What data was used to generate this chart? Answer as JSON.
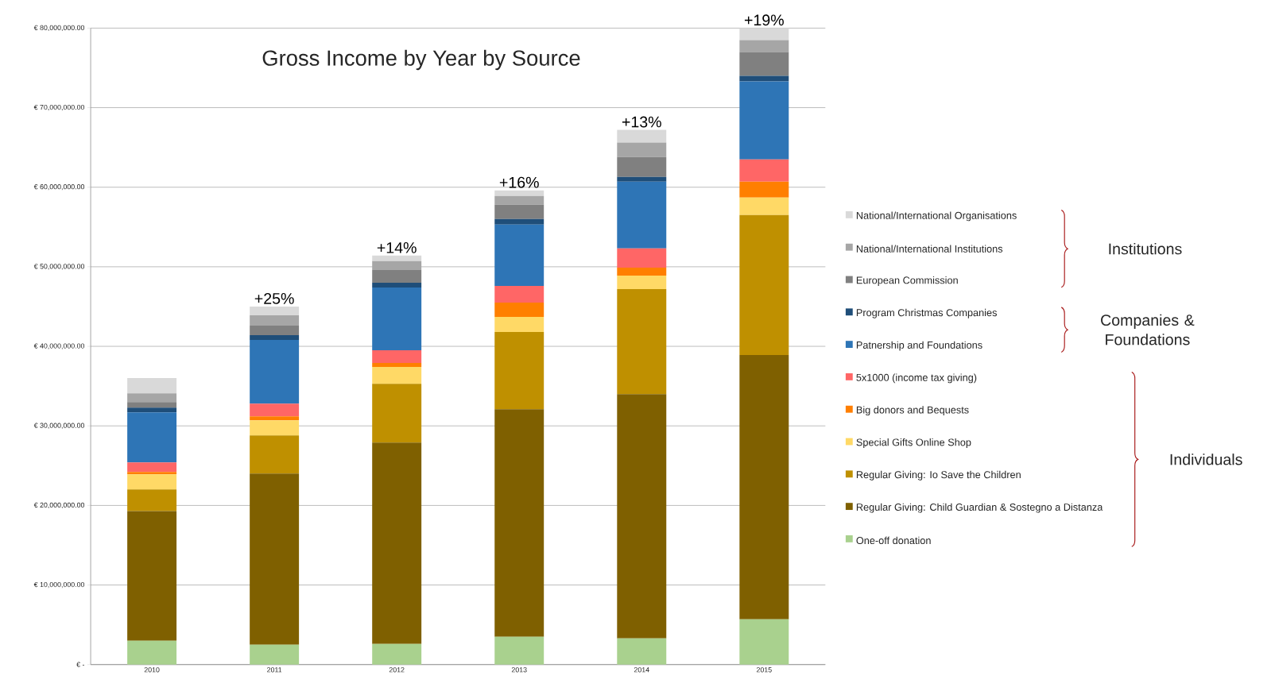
{
  "chart_data": {
    "type": "bar",
    "title": "Gross Income by Year by Source",
    "stacked": true,
    "grid": "y",
    "legend": "right",
    "categories": [
      "2010",
      "2011",
      "2012",
      "2013",
      "2014",
      "2015"
    ],
    "ylim": [
      0,
      80000000
    ],
    "yticks": [
      {
        "value": 0,
        "label": "€ -"
      },
      {
        "value": 10000000,
        "label": "€ 10,000,000.00"
      },
      {
        "value": 20000000,
        "label": "€ 20,000,000.00"
      },
      {
        "value": 30000000,
        "label": "€ 30,000,000.00"
      },
      {
        "value": 40000000,
        "label": "€ 40,000,000.00"
      },
      {
        "value": 50000000,
        "label": "€ 50,000,000.00"
      },
      {
        "value": 60000000,
        "label": "€ 60,000,000.00"
      },
      {
        "value": 70000000,
        "label": "€ 70,000,000.00"
      },
      {
        "value": 80000000,
        "label": "€ 80,000,000.00"
      }
    ],
    "series": [
      {
        "name": "One-off donation",
        "color": "#a9d18e",
        "values": [
          3000000,
          2500000,
          2600000,
          3500000,
          3300000,
          5700000
        ]
      },
      {
        "name": "Regular Giving: Child Guardian & Sostegno a Distanza",
        "color": "#7f6000",
        "values": [
          16300000,
          21500000,
          25300000,
          28600000,
          30700000,
          33200000
        ]
      },
      {
        "name": "Regular Giving: Io Save the Children",
        "color": "#bf9000",
        "values": [
          2700000,
          4800000,
          7400000,
          9700000,
          13200000,
          17600000
        ]
      },
      {
        "name": "Special Gifts Online Shop",
        "color": "#ffd966",
        "values": [
          1900000,
          1900000,
          2100000,
          1900000,
          1700000,
          2200000
        ]
      },
      {
        "name": "Big donors and Bequests",
        "color": "#ff7f00",
        "values": [
          300000,
          500000,
          500000,
          1800000,
          1000000,
          2000000
        ]
      },
      {
        "name": "5x1000 (income tax giving)",
        "color": "#ff6666",
        "values": [
          1200000,
          1600000,
          1600000,
          2100000,
          2400000,
          2800000
        ]
      },
      {
        "name": "Patnership and Foundations",
        "color": "#2e75b6",
        "values": [
          6300000,
          8000000,
          7900000,
          7700000,
          8400000,
          9800000
        ]
      },
      {
        "name": "Program Christmas Companies",
        "color": "#1f4e79",
        "values": [
          600000,
          600000,
          600000,
          700000,
          600000,
          700000
        ]
      },
      {
        "name": "European Commission",
        "color": "#808080",
        "values": [
          700000,
          1200000,
          1600000,
          1800000,
          2500000,
          3000000
        ]
      },
      {
        "name": "National/International Institutions",
        "color": "#a6a6a6",
        "values": [
          1100000,
          1300000,
          1100000,
          1100000,
          1800000,
          1500000
        ]
      },
      {
        "name": "National/International Organisations",
        "color": "#d9d9d9",
        "values": [
          1900000,
          1100000,
          700000,
          700000,
          1600000,
          1500000
        ]
      }
    ],
    "annotations": [
      {
        "text": "+25%",
        "x": "2011",
        "y": 45000000
      },
      {
        "text": "+14%",
        "x": "2012",
        "y": 51400000
      },
      {
        "text": "+16%",
        "x": "2013",
        "y": 59600000
      },
      {
        "text": "+13%",
        "x": "2014",
        "y": 67200000
      },
      {
        "text": "+19%",
        "x": "2015",
        "y": 80000000
      },
      "Institutions",
      "Companies & Foundations",
      "Individuals"
    ]
  }
}
